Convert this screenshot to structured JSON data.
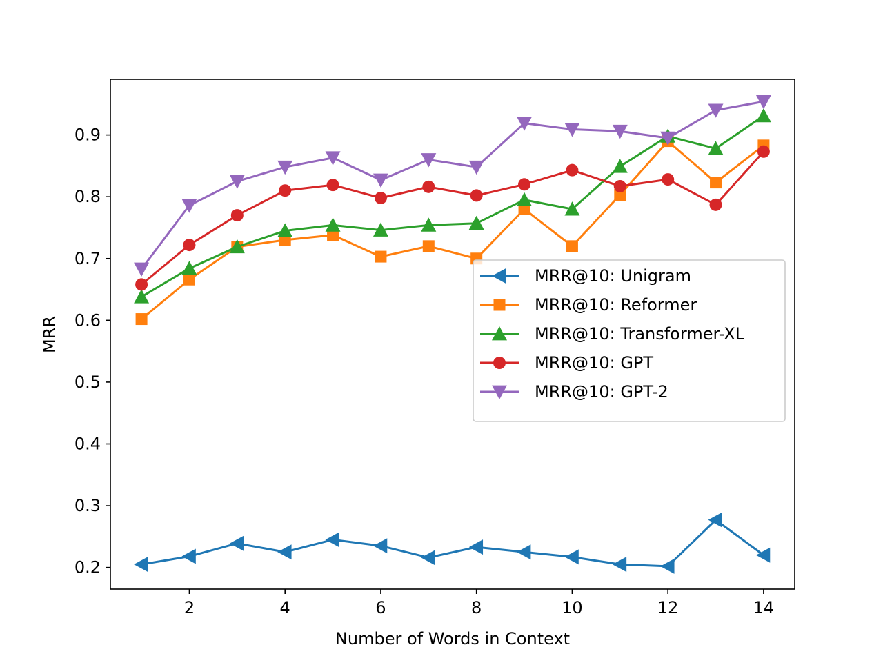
{
  "chart_data": {
    "type": "line",
    "title": "",
    "xlabel": "Number of Words in Context",
    "ylabel": "MRR",
    "xlim": [
      0.35,
      14.65
    ],
    "ylim": [
      0.165,
      0.99
    ],
    "xticks": [
      2,
      4,
      6,
      8,
      10,
      12,
      14
    ],
    "yticks": [
      0.2,
      0.3,
      0.4,
      0.5,
      0.6,
      0.7,
      0.8,
      0.9
    ],
    "grid": false,
    "legend_position": "center-right",
    "x": [
      1,
      2,
      3,
      4,
      5,
      6,
      7,
      8,
      9,
      10,
      11,
      12,
      13,
      14
    ],
    "series": [
      {
        "name": "MRR@10: Unigram",
        "color": "#1f77b4",
        "marker": "triangle-left",
        "values": [
          0.205,
          0.218,
          0.239,
          0.225,
          0.245,
          0.235,
          0.216,
          0.233,
          0.225,
          0.217,
          0.205,
          0.202,
          0.277,
          0.22
        ]
      },
      {
        "name": "MRR@10: Reformer",
        "color": "#ff7f0e",
        "marker": "square",
        "values": [
          0.602,
          0.666,
          0.719,
          0.73,
          0.738,
          0.703,
          0.72,
          0.7,
          0.78,
          0.72,
          0.803,
          0.89,
          0.823,
          0.883
        ]
      },
      {
        "name": "MRR@10: Transformer-XL",
        "color": "#2ca02c",
        "marker": "triangle-up",
        "values": [
          0.638,
          0.684,
          0.719,
          0.745,
          0.754,
          0.746,
          0.754,
          0.757,
          0.795,
          0.78,
          0.849,
          0.898,
          0.878,
          0.931
        ]
      },
      {
        "name": "MRR@10: GPT",
        "color": "#d62728",
        "marker": "circle",
        "values": [
          0.658,
          0.722,
          0.77,
          0.81,
          0.819,
          0.798,
          0.816,
          0.802,
          0.82,
          0.843,
          0.817,
          0.828,
          0.787,
          0.873
        ]
      },
      {
        "name": "MRR@10: GPT-2",
        "color": "#9467bd",
        "marker": "triangle-down",
        "values": [
          0.683,
          0.786,
          0.825,
          0.848,
          0.863,
          0.827,
          0.86,
          0.848,
          0.919,
          0.909,
          0.906,
          0.895,
          0.94,
          0.954
        ]
      }
    ]
  }
}
